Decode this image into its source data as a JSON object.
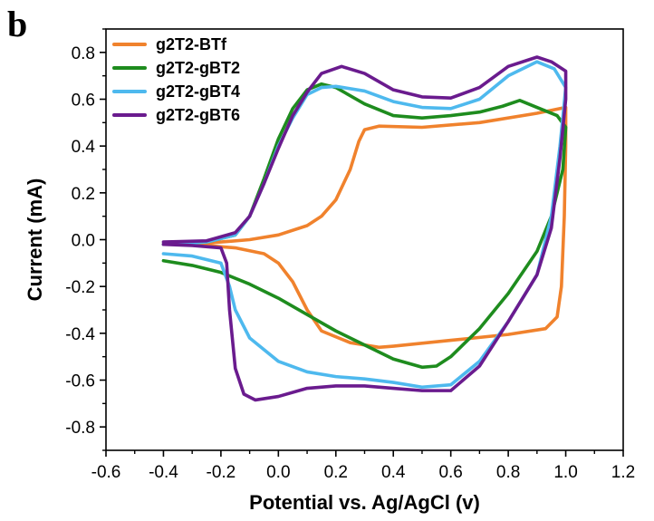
{
  "chart_data": {
    "type": "line",
    "panel_label": "b",
    "title": "",
    "xlabel": "Potential vs. Ag/AgCl (v)",
    "ylabel": "Current (mA)",
    "xlim": [
      -0.6,
      1.2
    ],
    "ylim": [
      -0.9,
      0.9
    ],
    "xticks": [
      -0.6,
      -0.4,
      -0.2,
      0.0,
      0.2,
      0.4,
      0.6,
      0.8,
      1.0,
      1.2
    ],
    "yticks": [
      -0.8,
      -0.6,
      -0.4,
      -0.2,
      0.0,
      0.2,
      0.4,
      0.6,
      0.8
    ],
    "xtick_labels": [
      "-0.6",
      "-0.4",
      "-0.2",
      "0.0",
      "0.2",
      "0.4",
      "0.6",
      "0.8",
      "1.0",
      "1.2"
    ],
    "ytick_labels": [
      "-0.8",
      "-0.6",
      "-0.4",
      "-0.2",
      "0.0",
      "0.2",
      "0.4",
      "0.6",
      "0.8"
    ],
    "grid": false,
    "legend_position": "top-left",
    "series": [
      {
        "name": "g2T2-BTf",
        "color": "#F0822D",
        "points": [
          [
            -0.4,
            -0.02
          ],
          [
            -0.3,
            -0.02
          ],
          [
            -0.2,
            -0.01
          ],
          [
            -0.1,
            0.0
          ],
          [
            0.0,
            0.02
          ],
          [
            0.1,
            0.06
          ],
          [
            0.15,
            0.1
          ],
          [
            0.2,
            0.17
          ],
          [
            0.25,
            0.3
          ],
          [
            0.28,
            0.42
          ],
          [
            0.3,
            0.47
          ],
          [
            0.35,
            0.485
          ],
          [
            0.5,
            0.48
          ],
          [
            0.7,
            0.5
          ],
          [
            0.9,
            0.54
          ],
          [
            1.0,
            0.565
          ],
          [
            1.0,
            0.4
          ],
          [
            0.995,
            0.1
          ],
          [
            0.985,
            -0.2
          ],
          [
            0.97,
            -0.33
          ],
          [
            0.93,
            -0.38
          ],
          [
            0.8,
            -0.405
          ],
          [
            0.6,
            -0.43
          ],
          [
            0.4,
            -0.455
          ],
          [
            0.35,
            -0.46
          ],
          [
            0.25,
            -0.44
          ],
          [
            0.15,
            -0.39
          ],
          [
            0.1,
            -0.3
          ],
          [
            0.05,
            -0.18
          ],
          [
            0.0,
            -0.1
          ],
          [
            -0.05,
            -0.06
          ],
          [
            -0.15,
            -0.035
          ],
          [
            -0.3,
            -0.02
          ],
          [
            -0.4,
            -0.02
          ]
        ]
      },
      {
        "name": "g2T2-gBT2",
        "color": "#1E8C1E",
        "points": [
          [
            -0.4,
            -0.09
          ],
          [
            -0.3,
            -0.11
          ],
          [
            -0.2,
            -0.14
          ],
          [
            -0.1,
            -0.19
          ],
          [
            0.0,
            -0.25
          ],
          [
            0.1,
            -0.32
          ],
          [
            0.2,
            -0.39
          ],
          [
            0.3,
            -0.45
          ],
          [
            0.4,
            -0.51
          ],
          [
            0.5,
            -0.545
          ],
          [
            0.55,
            -0.54
          ],
          [
            0.6,
            -0.5
          ],
          [
            0.7,
            -0.38
          ],
          [
            0.8,
            -0.23
          ],
          [
            0.9,
            -0.05
          ],
          [
            0.95,
            0.1
          ],
          [
            0.99,
            0.3
          ],
          [
            1.0,
            0.48
          ],
          [
            0.97,
            0.53
          ],
          [
            0.9,
            0.565
          ],
          [
            0.84,
            0.595
          ],
          [
            0.78,
            0.57
          ],
          [
            0.7,
            0.545
          ],
          [
            0.6,
            0.53
          ],
          [
            0.5,
            0.52
          ],
          [
            0.4,
            0.53
          ],
          [
            0.3,
            0.58
          ],
          [
            0.2,
            0.65
          ],
          [
            0.15,
            0.665
          ],
          [
            0.1,
            0.64
          ],
          [
            0.05,
            0.56
          ],
          [
            0.0,
            0.43
          ],
          [
            -0.05,
            0.26
          ],
          [
            -0.1,
            0.1
          ],
          [
            -0.15,
            0.02
          ],
          [
            -0.25,
            -0.01
          ],
          [
            -0.4,
            -0.02
          ]
        ]
      },
      {
        "name": "g2T2-gBT4",
        "color": "#4EB9EE",
        "points": [
          [
            -0.4,
            -0.06
          ],
          [
            -0.3,
            -0.07
          ],
          [
            -0.2,
            -0.1
          ],
          [
            -0.17,
            -0.2
          ],
          [
            -0.15,
            -0.3
          ],
          [
            -0.1,
            -0.42
          ],
          [
            0.0,
            -0.52
          ],
          [
            0.1,
            -0.565
          ],
          [
            0.2,
            -0.585
          ],
          [
            0.3,
            -0.595
          ],
          [
            0.4,
            -0.61
          ],
          [
            0.5,
            -0.63
          ],
          [
            0.6,
            -0.62
          ],
          [
            0.7,
            -0.52
          ],
          [
            0.8,
            -0.35
          ],
          [
            0.9,
            -0.15
          ],
          [
            0.95,
            0.1
          ],
          [
            0.98,
            0.4
          ],
          [
            1.0,
            0.65
          ],
          [
            0.96,
            0.73
          ],
          [
            0.9,
            0.76
          ],
          [
            0.8,
            0.7
          ],
          [
            0.7,
            0.6
          ],
          [
            0.6,
            0.56
          ],
          [
            0.5,
            0.565
          ],
          [
            0.4,
            0.59
          ],
          [
            0.3,
            0.635
          ],
          [
            0.2,
            0.655
          ],
          [
            0.15,
            0.65
          ],
          [
            0.1,
            0.62
          ],
          [
            0.05,
            0.52
          ],
          [
            0.0,
            0.4
          ],
          [
            -0.05,
            0.24
          ],
          [
            -0.1,
            0.1
          ],
          [
            -0.15,
            0.02
          ],
          [
            -0.25,
            -0.01
          ],
          [
            -0.4,
            -0.02
          ]
        ]
      },
      {
        "name": "g2T2-gBT6",
        "color": "#6A1B8E",
        "points": [
          [
            -0.4,
            -0.02
          ],
          [
            -0.3,
            -0.025
          ],
          [
            -0.2,
            -0.035
          ],
          [
            -0.18,
            -0.1
          ],
          [
            -0.17,
            -0.3
          ],
          [
            -0.15,
            -0.55
          ],
          [
            -0.12,
            -0.66
          ],
          [
            -0.08,
            -0.685
          ],
          [
            0.0,
            -0.67
          ],
          [
            0.1,
            -0.635
          ],
          [
            0.2,
            -0.625
          ],
          [
            0.3,
            -0.625
          ],
          [
            0.4,
            -0.635
          ],
          [
            0.5,
            -0.645
          ],
          [
            0.6,
            -0.645
          ],
          [
            0.7,
            -0.54
          ],
          [
            0.8,
            -0.35
          ],
          [
            0.9,
            -0.15
          ],
          [
            0.95,
            0.05
          ],
          [
            0.98,
            0.35
          ],
          [
            1.0,
            0.6
          ],
          [
            1.0,
            0.72
          ],
          [
            0.95,
            0.76
          ],
          [
            0.9,
            0.78
          ],
          [
            0.8,
            0.74
          ],
          [
            0.7,
            0.65
          ],
          [
            0.6,
            0.605
          ],
          [
            0.5,
            0.61
          ],
          [
            0.4,
            0.64
          ],
          [
            0.3,
            0.71
          ],
          [
            0.22,
            0.74
          ],
          [
            0.15,
            0.71
          ],
          [
            0.1,
            0.63
          ],
          [
            0.05,
            0.53
          ],
          [
            0.0,
            0.39
          ],
          [
            -0.05,
            0.24
          ],
          [
            -0.1,
            0.1
          ],
          [
            -0.15,
            0.03
          ],
          [
            -0.25,
            -0.005
          ],
          [
            -0.4,
            -0.01
          ]
        ]
      }
    ]
  }
}
